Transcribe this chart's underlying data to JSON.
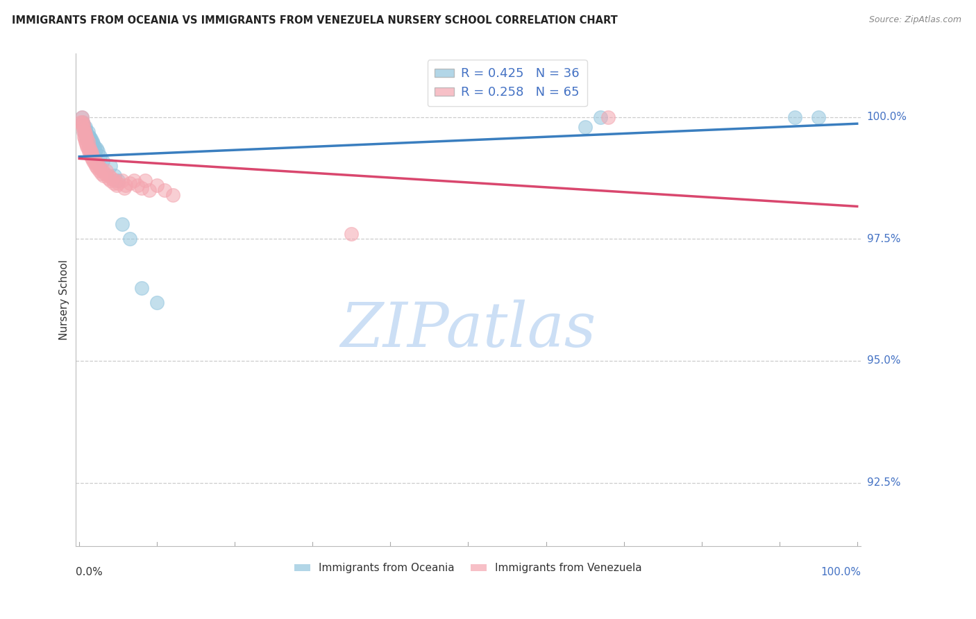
{
  "title": "IMMIGRANTS FROM OCEANIA VS IMMIGRANTS FROM VENEZUELA NURSERY SCHOOL CORRELATION CHART",
  "source": "Source: ZipAtlas.com",
  "ylabel": "Nursery School",
  "ylim": [
    91.2,
    101.3
  ],
  "xlim": [
    -0.005,
    1.005
  ],
  "yticks": [
    92.5,
    95.0,
    97.5,
    100.0
  ],
  "oceania_R": 0.425,
  "oceania_N": 36,
  "venezuela_R": 0.258,
  "venezuela_N": 65,
  "oceania_color": "#92c5de",
  "venezuela_color": "#f4a6b0",
  "oceania_line_color": "#3a7ebf",
  "venezuela_line_color": "#d9476e",
  "legend_text_color": "#4472c4",
  "ytick_color": "#4472c4",
  "watermark_color": "#ccdff5",
  "oceania_x": [
    0.003,
    0.004,
    0.005,
    0.006,
    0.006,
    0.007,
    0.008,
    0.009,
    0.009,
    0.01,
    0.011,
    0.012,
    0.012,
    0.013,
    0.014,
    0.015,
    0.016,
    0.017,
    0.018,
    0.019,
    0.02,
    0.022,
    0.024,
    0.027,
    0.03,
    0.04,
    0.045,
    0.05,
    0.055,
    0.065,
    0.08,
    0.1,
    0.65,
    0.67,
    0.92,
    0.95
  ],
  "oceania_y": [
    100.0,
    99.9,
    99.85,
    99.8,
    99.7,
    99.75,
    99.8,
    99.7,
    99.6,
    99.65,
    99.7,
    99.6,
    99.5,
    99.6,
    99.5,
    99.55,
    99.4,
    99.5,
    99.45,
    99.4,
    99.3,
    99.35,
    99.3,
    99.2,
    99.1,
    99.0,
    98.8,
    98.7,
    97.8,
    97.5,
    96.5,
    96.2,
    99.8,
    100.0,
    100.0,
    100.0
  ],
  "venezuela_x": [
    0.002,
    0.003,
    0.003,
    0.004,
    0.004,
    0.005,
    0.005,
    0.006,
    0.006,
    0.007,
    0.007,
    0.008,
    0.008,
    0.009,
    0.009,
    0.01,
    0.01,
    0.011,
    0.011,
    0.012,
    0.012,
    0.013,
    0.014,
    0.015,
    0.015,
    0.016,
    0.016,
    0.017,
    0.018,
    0.018,
    0.019,
    0.02,
    0.021,
    0.022,
    0.023,
    0.025,
    0.026,
    0.027,
    0.028,
    0.03,
    0.031,
    0.033,
    0.035,
    0.037,
    0.038,
    0.04,
    0.042,
    0.044,
    0.046,
    0.048,
    0.05,
    0.055,
    0.058,
    0.06,
    0.065,
    0.07,
    0.075,
    0.08,
    0.085,
    0.09,
    0.1,
    0.11,
    0.12,
    0.35,
    0.68
  ],
  "venezuela_y": [
    99.9,
    100.0,
    99.85,
    99.9,
    99.8,
    99.85,
    99.7,
    99.75,
    99.6,
    99.7,
    99.55,
    99.65,
    99.5,
    99.6,
    99.45,
    99.55,
    99.4,
    99.5,
    99.35,
    99.4,
    99.3,
    99.35,
    99.25,
    99.3,
    99.2,
    99.25,
    99.15,
    99.2,
    99.15,
    99.1,
    99.05,
    99.1,
    99.0,
    99.05,
    98.95,
    99.0,
    98.9,
    98.95,
    98.85,
    98.9,
    98.8,
    98.85,
    98.9,
    98.75,
    98.8,
    98.7,
    98.75,
    98.65,
    98.7,
    98.6,
    98.65,
    98.7,
    98.55,
    98.6,
    98.65,
    98.7,
    98.6,
    98.55,
    98.7,
    98.5,
    98.6,
    98.5,
    98.4,
    97.6,
    100.0
  ]
}
